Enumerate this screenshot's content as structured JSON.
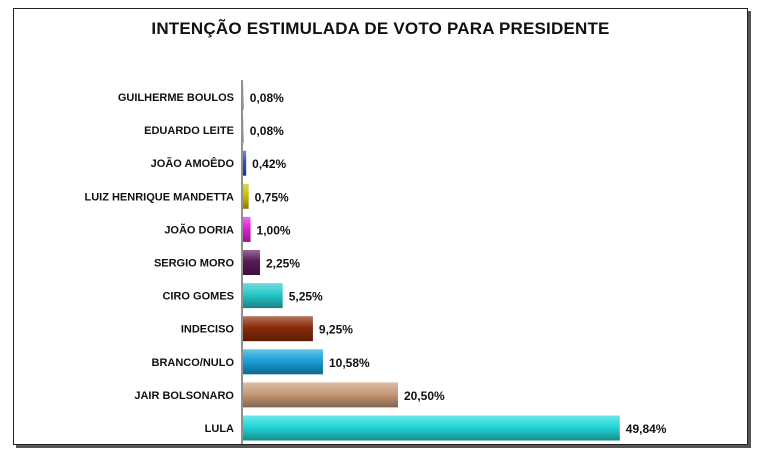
{
  "chart_data": {
    "type": "bar",
    "orientation": "horizontal",
    "title": "INTENÇÃO ESTIMULADA DE VOTO PARA PRESIDENTE",
    "categories": [
      "GUILHERME BOULOS",
      "EDUARDO LEITE",
      "JOÃO AMOÊDO",
      "LUIZ HENRIQUE MANDETTA",
      "JOÃO DORIA",
      "SERGIO MORO",
      "CIRO GOMES",
      "INDECISO",
      "BRANCO/NULO",
      "JAIR BOLSONARO",
      "LULA"
    ],
    "values": [
      0.08,
      0.08,
      0.42,
      0.75,
      1.0,
      2.25,
      5.25,
      9.25,
      10.58,
      20.5,
      49.84
    ],
    "value_labels": [
      "0,08%",
      "0,08%",
      "0,42%",
      "0,75%",
      "1,00%",
      "2,25%",
      "5,25%",
      "9,25%",
      "10,58%",
      "20,50%",
      "49,84%"
    ],
    "colors": [
      "#cfcfcf",
      "#cfcfcf",
      "#2f4fc8",
      "#c8c000",
      "#e020d8",
      "#5a1a5a",
      "#28c8c8",
      "#8a2c08",
      "#1aa0d8",
      "#c89a78",
      "#22d8d8"
    ],
    "xlim": [
      0,
      50
    ],
    "grid": false,
    "legend": "none"
  }
}
